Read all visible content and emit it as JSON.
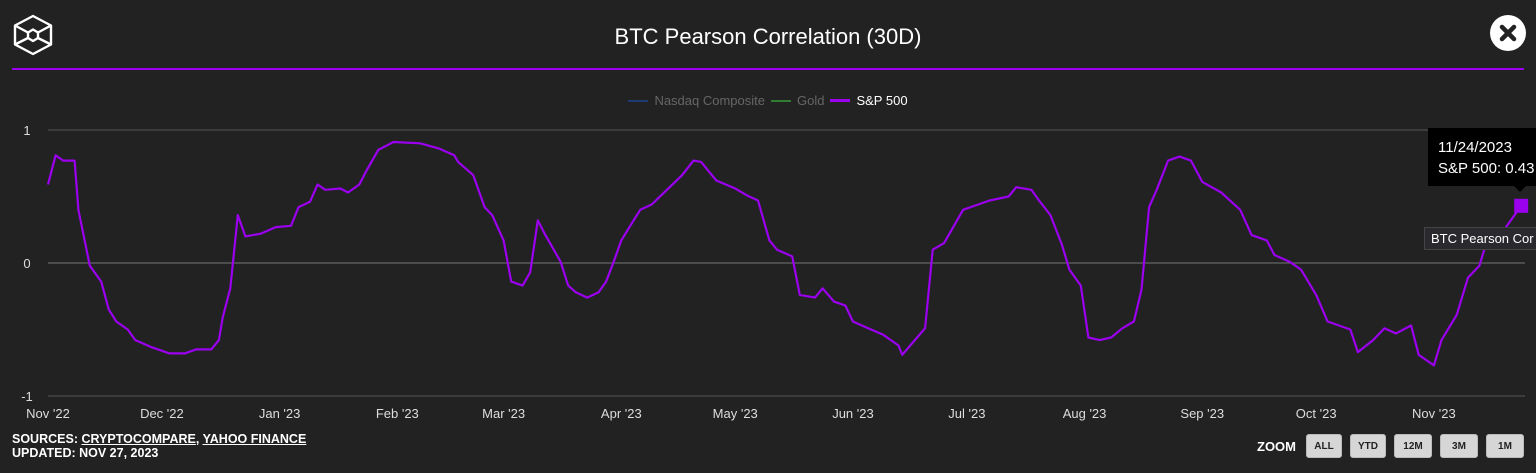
{
  "header": {
    "title": "BTC Pearson Correlation (30D)",
    "logo_icon": "cube-logo-icon",
    "close_icon": "close-icon"
  },
  "legend": [
    {
      "label": "Nasdaq Composite",
      "color": "#1f3b73",
      "active": false
    },
    {
      "label": "Gold",
      "color": "#2e7d32",
      "active": false
    },
    {
      "label": "S&P 500",
      "color": "#9b00ef",
      "active": true
    }
  ],
  "tooltip": {
    "date": "11/24/2023",
    "text": "S&P 500: 0.43"
  },
  "hover_label": "BTC Pearson Cor",
  "footer": {
    "sources_label": "SOURCES:",
    "source1": "CRYPTOCOMPARE",
    "sep": ",",
    "source2": "YAHOO FINANCE",
    "updated": "UPDATED: NOV 27, 2023"
  },
  "zoom": {
    "label": "ZOOM",
    "buttons": [
      "ALL",
      "YTD",
      "12M",
      "3M",
      "1M"
    ]
  },
  "colors": {
    "accent": "#9b00ef",
    "background": "#222222",
    "grid": "#555555"
  },
  "chart_data": {
    "type": "line",
    "title": "BTC Pearson Correlation (30D)",
    "xlabel": "",
    "ylabel": "",
    "ylim": [
      -1,
      1
    ],
    "yticks": [
      "1",
      "0",
      "-1"
    ],
    "ytick_values": [
      1,
      0,
      -1
    ],
    "xlim": [
      "2022-11-01",
      "2023-11-25"
    ],
    "xticks": [
      {
        "label": "Nov '22",
        "date": "2022-11-01"
      },
      {
        "label": "Dec '22",
        "date": "2022-12-01"
      },
      {
        "label": "Jan '23",
        "date": "2023-01-01"
      },
      {
        "label": "Feb '23",
        "date": "2023-02-01"
      },
      {
        "label": "Mar '23",
        "date": "2023-03-01"
      },
      {
        "label": "Apr '23",
        "date": "2023-04-01"
      },
      {
        "label": "May '23",
        "date": "2023-05-01"
      },
      {
        "label": "Jun '23",
        "date": "2023-06-01"
      },
      {
        "label": "Jul '23",
        "date": "2023-07-01"
      },
      {
        "label": "Aug '23",
        "date": "2023-08-01"
      },
      {
        "label": "Sep '23",
        "date": "2023-09-01"
      },
      {
        "label": "Oct '23",
        "date": "2023-10-01"
      },
      {
        "label": "Nov '23",
        "date": "2023-11-01"
      }
    ],
    "grid": true,
    "legend_position": "top",
    "series": [
      {
        "name": "Nasdaq Composite",
        "color": "#1f3b73",
        "visible": false,
        "points": []
      },
      {
        "name": "Gold",
        "color": "#2e7d32",
        "visible": false,
        "points": []
      },
      {
        "name": "S&P 500",
        "color": "#9b00ef",
        "visible": true,
        "points": [
          [
            "2022-11-01",
            0.59
          ],
          [
            "2022-11-03",
            0.81
          ],
          [
            "2022-11-05",
            0.77
          ],
          [
            "2022-11-08",
            0.77
          ],
          [
            "2022-11-09",
            0.4
          ],
          [
            "2022-11-12",
            -0.02
          ],
          [
            "2022-11-15",
            -0.14
          ],
          [
            "2022-11-17",
            -0.35
          ],
          [
            "2022-11-19",
            -0.44
          ],
          [
            "2022-11-22",
            -0.5
          ],
          [
            "2022-11-24",
            -0.58
          ],
          [
            "2022-11-28",
            -0.63
          ],
          [
            "2022-11-30",
            -0.65
          ],
          [
            "2022-12-03",
            -0.68
          ],
          [
            "2022-12-07",
            -0.68
          ],
          [
            "2022-12-10",
            -0.65
          ],
          [
            "2022-12-14",
            -0.65
          ],
          [
            "2022-12-16",
            -0.58
          ],
          [
            "2022-12-17",
            -0.41
          ],
          [
            "2022-12-19",
            -0.19
          ],
          [
            "2022-12-21",
            0.36
          ],
          [
            "2022-12-23",
            0.2
          ],
          [
            "2022-12-27",
            0.22
          ],
          [
            "2022-12-31",
            0.27
          ],
          [
            "2023-01-04",
            0.28
          ],
          [
            "2023-01-06",
            0.42
          ],
          [
            "2023-01-09",
            0.46
          ],
          [
            "2023-01-11",
            0.59
          ],
          [
            "2023-01-13",
            0.55
          ],
          [
            "2023-01-17",
            0.56
          ],
          [
            "2023-01-19",
            0.53
          ],
          [
            "2023-01-22",
            0.59
          ],
          [
            "2023-01-24",
            0.7
          ],
          [
            "2023-01-27",
            0.85
          ],
          [
            "2023-01-31",
            0.91
          ],
          [
            "2023-02-07",
            0.9
          ],
          [
            "2023-02-12",
            0.86
          ],
          [
            "2023-02-16",
            0.81
          ],
          [
            "2023-02-17",
            0.76
          ],
          [
            "2023-02-21",
            0.66
          ],
          [
            "2023-02-24",
            0.42
          ],
          [
            "2023-02-26",
            0.36
          ],
          [
            "2023-03-01",
            0.17
          ],
          [
            "2023-03-03",
            -0.14
          ],
          [
            "2023-03-06",
            -0.17
          ],
          [
            "2023-03-08",
            -0.07
          ],
          [
            "2023-03-10",
            0.32
          ],
          [
            "2023-03-12",
            0.21
          ],
          [
            "2023-03-16",
            0.01
          ],
          [
            "2023-03-18",
            -0.17
          ],
          [
            "2023-03-20",
            -0.22
          ],
          [
            "2023-03-23",
            -0.26
          ],
          [
            "2023-03-26",
            -0.22
          ],
          [
            "2023-03-28",
            -0.14
          ],
          [
            "2023-03-30",
            0.01
          ],
          [
            "2023-04-01",
            0.17
          ],
          [
            "2023-04-04",
            0.31
          ],
          [
            "2023-04-06",
            0.4
          ],
          [
            "2023-04-09",
            0.44
          ],
          [
            "2023-04-13",
            0.55
          ],
          [
            "2023-04-17",
            0.66
          ],
          [
            "2023-04-20",
            0.77
          ],
          [
            "2023-04-22",
            0.76
          ],
          [
            "2023-04-26",
            0.62
          ],
          [
            "2023-05-01",
            0.56
          ],
          [
            "2023-05-04",
            0.51
          ],
          [
            "2023-05-07",
            0.47
          ],
          [
            "2023-05-10",
            0.17
          ],
          [
            "2023-05-12",
            0.1
          ],
          [
            "2023-05-16",
            0.05
          ],
          [
            "2023-05-18",
            -0.24
          ],
          [
            "2023-05-22",
            -0.26
          ],
          [
            "2023-05-24",
            -0.19
          ],
          [
            "2023-05-27",
            -0.29
          ],
          [
            "2023-05-30",
            -0.32
          ],
          [
            "2023-06-01",
            -0.44
          ],
          [
            "2023-06-05",
            -0.49
          ],
          [
            "2023-06-09",
            -0.54
          ],
          [
            "2023-06-13",
            -0.62
          ],
          [
            "2023-06-14",
            -0.69
          ],
          [
            "2023-06-17",
            -0.59
          ],
          [
            "2023-06-20",
            -0.49
          ],
          [
            "2023-06-22",
            0.1
          ],
          [
            "2023-06-25",
            0.15
          ],
          [
            "2023-06-30",
            0.4
          ],
          [
            "2023-07-04",
            0.44
          ],
          [
            "2023-07-07",
            0.47
          ],
          [
            "2023-07-12",
            0.5
          ],
          [
            "2023-07-14",
            0.57
          ],
          [
            "2023-07-18",
            0.55
          ],
          [
            "2023-07-20",
            0.47
          ],
          [
            "2023-07-23",
            0.36
          ],
          [
            "2023-07-26",
            0.14
          ],
          [
            "2023-07-28",
            -0.05
          ],
          [
            "2023-07-31",
            -0.17
          ],
          [
            "2023-08-02",
            -0.56
          ],
          [
            "2023-08-05",
            -0.58
          ],
          [
            "2023-08-08",
            -0.56
          ],
          [
            "2023-08-11",
            -0.49
          ],
          [
            "2023-08-14",
            -0.44
          ],
          [
            "2023-08-16",
            -0.2
          ],
          [
            "2023-08-18",
            0.42
          ],
          [
            "2023-08-20",
            0.55
          ],
          [
            "2023-08-23",
            0.77
          ],
          [
            "2023-08-26",
            0.8
          ],
          [
            "2023-08-29",
            0.77
          ],
          [
            "2023-09-01",
            0.61
          ],
          [
            "2023-09-06",
            0.53
          ],
          [
            "2023-09-11",
            0.4
          ],
          [
            "2023-09-14",
            0.21
          ],
          [
            "2023-09-18",
            0.17
          ],
          [
            "2023-09-20",
            0.06
          ],
          [
            "2023-09-24",
            0.01
          ],
          [
            "2023-09-27",
            -0.05
          ],
          [
            "2023-10-01",
            -0.24
          ],
          [
            "2023-10-04",
            -0.44
          ],
          [
            "2023-10-10",
            -0.5
          ],
          [
            "2023-10-12",
            -0.67
          ],
          [
            "2023-10-16",
            -0.58
          ],
          [
            "2023-10-19",
            -0.49
          ],
          [
            "2023-10-22",
            -0.53
          ],
          [
            "2023-10-26",
            -0.47
          ],
          [
            "2023-10-28",
            -0.69
          ],
          [
            "2023-11-01",
            -0.77
          ],
          [
            "2023-11-03",
            -0.58
          ],
          [
            "2023-11-07",
            -0.39
          ],
          [
            "2023-11-10",
            -0.11
          ],
          [
            "2023-11-13",
            -0.02
          ],
          [
            "2023-11-15",
            0.17
          ],
          [
            "2023-11-19",
            0.23
          ],
          [
            "2023-11-24",
            0.43
          ]
        ]
      }
    ],
    "highlighted_point": {
      "series": "S&P 500",
      "date": "2023-11-24",
      "value": 0.43
    }
  }
}
